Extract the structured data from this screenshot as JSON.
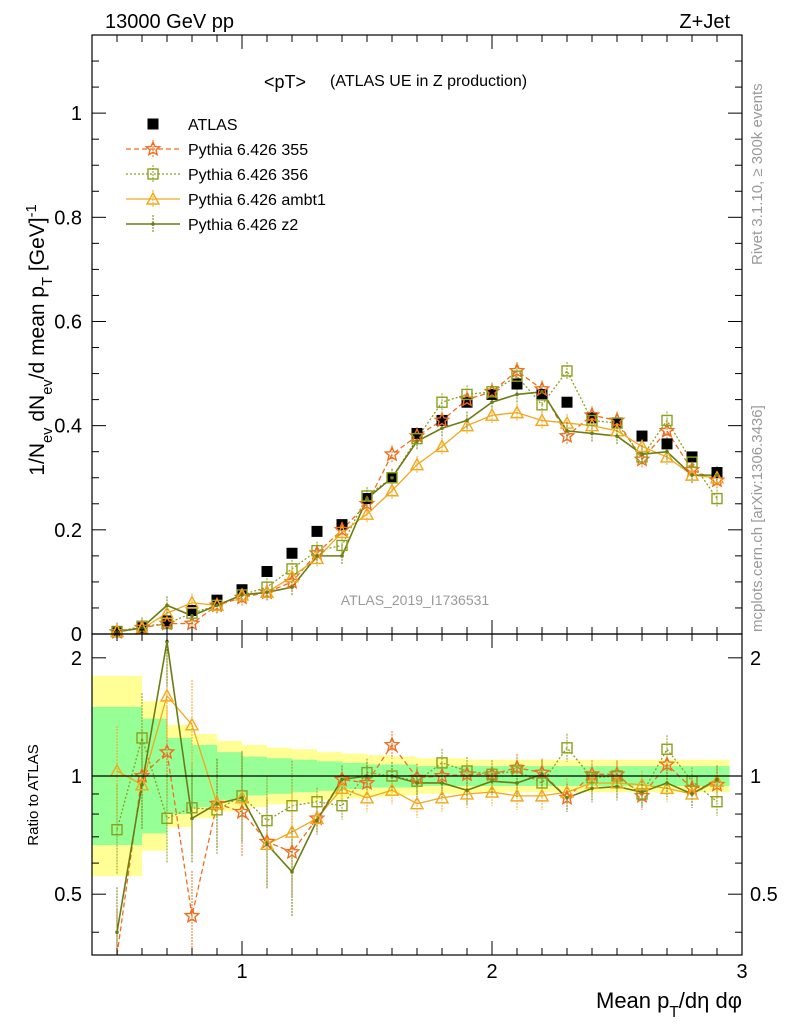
{
  "header": {
    "left": "13000 GeV pp",
    "right": "Z+Jet"
  },
  "side_text": {
    "rivet": "Rivet 3.1.10, ≥ 300k events",
    "mcplots": "mcplots.cern.ch [arXiv:1306.3436]"
  },
  "colors": {
    "atlas": "#000000",
    "p355": "#f26e1e",
    "p356": "#8ba11d",
    "ambt1": "#f2a81d",
    "z2": "#6b7d14",
    "band_yellow": "#ffff96",
    "band_green": "#96ff96"
  },
  "chart_data": {
    "type": "line",
    "title": "<pT>",
    "subtitle": "(ATLAS UE in Z production)",
    "watermark": "ATLAS_2019_I1736531",
    "xlabel": "Mean p_T/dη dφ",
    "ylabel": "1/N_ev dN_ev/d mean p_T [GeV]^-1",
    "ratio_ylabel": "Ratio to ATLAS",
    "xlim": [
      0.4,
      3.0
    ],
    "ylim": [
      0,
      1.15
    ],
    "ratio_ylim": [
      0.35,
      2.3
    ],
    "x_ticks": [
      "1",
      "2",
      "3"
    ],
    "y_ticks": [
      "0",
      "0.2",
      "0.4",
      "0.6",
      "0.8",
      "1"
    ],
    "ratio_ticks": [
      "0.5",
      "1",
      "2"
    ],
    "x": [
      0.5,
      0.6,
      0.7,
      0.8,
      0.9,
      1.0,
      1.1,
      1.2,
      1.3,
      1.4,
      1.5,
      1.6,
      1.7,
      1.8,
      1.9,
      2.0,
      2.1,
      2.2,
      2.3,
      2.4,
      2.5,
      2.6,
      2.7,
      2.8,
      2.9
    ],
    "series": [
      {
        "name": "ATLAS",
        "key": "atlas",
        "values": [
          0.005,
          0.012,
          0.025,
          0.045,
          0.065,
          0.085,
          0.12,
          0.155,
          0.197,
          0.21,
          0.26,
          0.3,
          0.385,
          0.41,
          0.445,
          0.46,
          0.48,
          0.46,
          0.445,
          0.415,
          0.405,
          0.38,
          0.365,
          0.34,
          0.31
        ]
      },
      {
        "name": "Pythia 6.426 355",
        "key": "p355",
        "values": [
          0.004,
          0.012,
          0.02,
          0.02,
          0.055,
          0.07,
          0.08,
          0.1,
          0.155,
          0.2,
          0.25,
          0.345,
          0.38,
          0.41,
          0.45,
          0.465,
          0.505,
          0.47,
          0.38,
          0.42,
          0.41,
          0.335,
          0.39,
          0.315,
          0.295
        ]
      },
      {
        "name": "Pythia 6.426 356",
        "key": "p356",
        "values": [
          0.004,
          0.015,
          0.02,
          0.04,
          0.055,
          0.075,
          0.09,
          0.125,
          0.16,
          0.17,
          0.265,
          0.3,
          0.375,
          0.445,
          0.46,
          0.465,
          0.495,
          0.44,
          0.505,
          0.41,
          0.405,
          0.34,
          0.41,
          0.33,
          0.26
        ]
      },
      {
        "name": "Pythia 6.426 ambt1",
        "key": "ambt1",
        "values": [
          0.005,
          0.01,
          0.04,
          0.06,
          0.055,
          0.075,
          0.08,
          0.11,
          0.145,
          0.195,
          0.23,
          0.275,
          0.325,
          0.36,
          0.4,
          0.42,
          0.425,
          0.41,
          0.405,
          0.4,
          0.39,
          0.36,
          0.34,
          0.305,
          0.3
        ]
      },
      {
        "name": "Pythia 6.426 z2",
        "key": "z2",
        "values": [
          0.004,
          0.012,
          0.055,
          0.035,
          0.055,
          0.075,
          0.08,
          0.09,
          0.15,
          0.15,
          0.26,
          0.3,
          0.37,
          0.395,
          0.41,
          0.445,
          0.46,
          0.465,
          0.39,
          0.385,
          0.38,
          0.345,
          0.35,
          0.305,
          0.305
        ]
      }
    ],
    "ratio_series": [
      {
        "name": "Pythia 6.426 355",
        "key": "p355",
        "values": [
          0.2,
          1.0,
          1.15,
          0.44,
          0.85,
          0.81,
          0.68,
          0.64,
          0.78,
          0.98,
          0.96,
          1.2,
          0.99,
          1.0,
          1.01,
          1.01,
          1.05,
          1.02,
          0.88,
          1.01,
          1.01,
          0.89,
          1.07,
          0.93,
          0.95
        ]
      },
      {
        "name": "Pythia 6.426 356",
        "key": "p356",
        "values": [
          0.73,
          1.25,
          0.78,
          0.83,
          0.82,
          0.89,
          0.77,
          0.84,
          0.86,
          0.84,
          1.02,
          1.0,
          0.97,
          1.08,
          1.03,
          1.01,
          1.03,
          0.96,
          1.18,
          0.99,
          1.0,
          0.9,
          1.17,
          0.97,
          0.86
        ]
      },
      {
        "name": "Pythia 6.426 ambt1",
        "key": "ambt1",
        "values": [
          1.03,
          0.95,
          1.6,
          1.35,
          0.85,
          0.88,
          0.67,
          0.72,
          0.78,
          0.93,
          0.88,
          0.92,
          0.85,
          0.88,
          0.9,
          0.91,
          0.89,
          0.89,
          0.91,
          0.96,
          0.96,
          0.95,
          0.93,
          0.9,
          0.97
        ]
      },
      {
        "name": "Pythia 6.426 z2",
        "key": "z2",
        "values": [
          0.4,
          0.95,
          2.2,
          0.78,
          0.85,
          0.88,
          0.67,
          0.57,
          0.77,
          0.98,
          1.0,
          1.0,
          0.96,
          0.96,
          0.92,
          0.97,
          0.96,
          1.01,
          0.88,
          0.93,
          0.94,
          0.91,
          0.96,
          0.9,
          0.98
        ]
      }
    ],
    "band_yellow": [
      [
        0.4,
        1.8
      ],
      [
        0.6,
        1.55
      ],
      [
        0.7,
        1.35
      ],
      [
        0.8,
        1.28
      ],
      [
        0.9,
        1.23
      ],
      [
        1.0,
        1.2
      ],
      [
        1.1,
        1.18
      ],
      [
        1.2,
        1.17
      ],
      [
        1.3,
        1.15
      ],
      [
        1.4,
        1.14
      ],
      [
        1.5,
        1.13
      ],
      [
        1.6,
        1.12
      ],
      [
        1.7,
        1.11
      ],
      [
        1.8,
        1.11
      ],
      [
        1.9,
        1.1
      ],
      [
        2.0,
        1.1
      ],
      [
        2.2,
        1.1
      ],
      [
        2.4,
        1.1
      ],
      [
        2.6,
        1.1
      ],
      [
        2.8,
        1.1
      ],
      [
        2.95,
        1.1
      ]
    ],
    "band_green": [
      [
        0.4,
        1.5
      ],
      [
        0.6,
        1.4
      ],
      [
        0.7,
        1.25
      ],
      [
        0.8,
        1.2
      ],
      [
        0.9,
        1.15
      ],
      [
        1.0,
        1.12
      ],
      [
        1.1,
        1.11
      ],
      [
        1.2,
        1.1
      ],
      [
        1.3,
        1.09
      ],
      [
        1.4,
        1.08
      ],
      [
        1.5,
        1.07
      ],
      [
        1.6,
        1.07
      ],
      [
        1.7,
        1.06
      ],
      [
        1.8,
        1.06
      ],
      [
        1.9,
        1.06
      ],
      [
        2.0,
        1.06
      ],
      [
        2.2,
        1.06
      ],
      [
        2.4,
        1.06
      ],
      [
        2.6,
        1.06
      ],
      [
        2.8,
        1.06
      ],
      [
        2.95,
        1.06
      ]
    ]
  }
}
